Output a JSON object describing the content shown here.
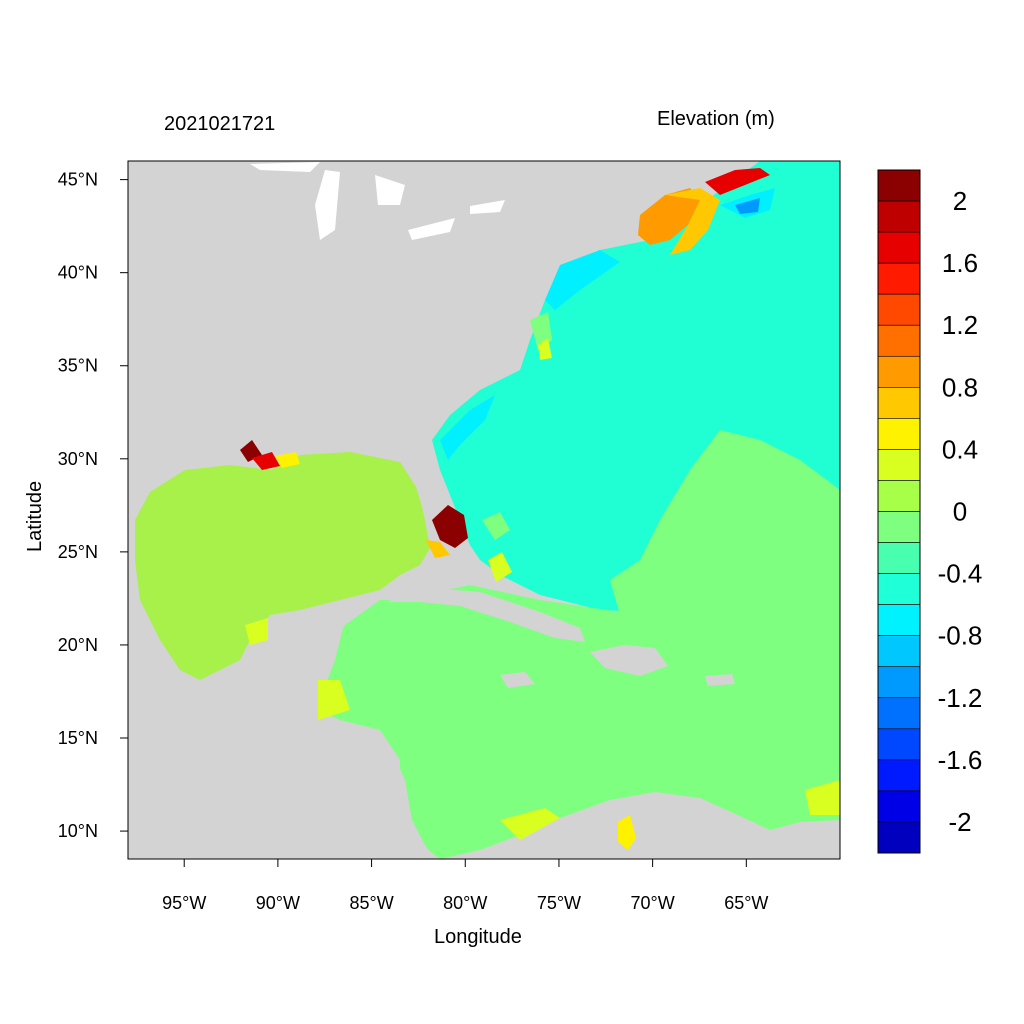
{
  "header": {
    "date": "2021021721",
    "variable": "Elevation (m)"
  },
  "axes": {
    "xlabel": "Longitude",
    "ylabel": "Latitude",
    "lon_range": [
      -98,
      -60
    ],
    "lat_range": [
      8.5,
      46
    ],
    "x_ticks": [
      {
        "value": -95,
        "label": "95°W"
      },
      {
        "value": -90,
        "label": "90°W"
      },
      {
        "value": -85,
        "label": "85°W"
      },
      {
        "value": -80,
        "label": "80°W"
      },
      {
        "value": -75,
        "label": "75°W"
      },
      {
        "value": -70,
        "label": "70°W"
      },
      {
        "value": -65,
        "label": "65°W"
      }
    ],
    "y_ticks": [
      {
        "value": 45,
        "label": "45°N"
      },
      {
        "value": 40,
        "label": "40°N"
      },
      {
        "value": 35,
        "label": "35°N"
      },
      {
        "value": 30,
        "label": "30°N"
      },
      {
        "value": 25,
        "label": "25°N"
      },
      {
        "value": 20,
        "label": "20°N"
      },
      {
        "value": 15,
        "label": "15°N"
      },
      {
        "value": 10,
        "label": "10°N"
      }
    ]
  },
  "colorbar": {
    "colors_top_to_bottom": [
      "#8b0000",
      "#be0000",
      "#e60000",
      "#ff1a00",
      "#ff4800",
      "#ff7000",
      "#ff9a00",
      "#ffc800",
      "#fff200",
      "#d8ff1f",
      "#a8ff47",
      "#7fff7f",
      "#47ffaf",
      "#1fffd8",
      "#00f2ff",
      "#00c8ff",
      "#009aff",
      "#0070ff",
      "#0048ff",
      "#001aff",
      "#0000e6",
      "#0000be"
    ],
    "labels": [
      "2",
      "1.6",
      "1.2",
      "0.8",
      "0.4",
      "0",
      "-0.4",
      "-0.8",
      "-1.2",
      "-1.6",
      "-2"
    ]
  },
  "colors": {
    "land": "#d3d3d3",
    "gulf": "#a8f04a",
    "caribbean": "#7fff7f",
    "atlantic_shelf": "#20ffd4",
    "coastal_cyan": "#00f0ff",
    "high_surge": "#8b0000"
  }
}
